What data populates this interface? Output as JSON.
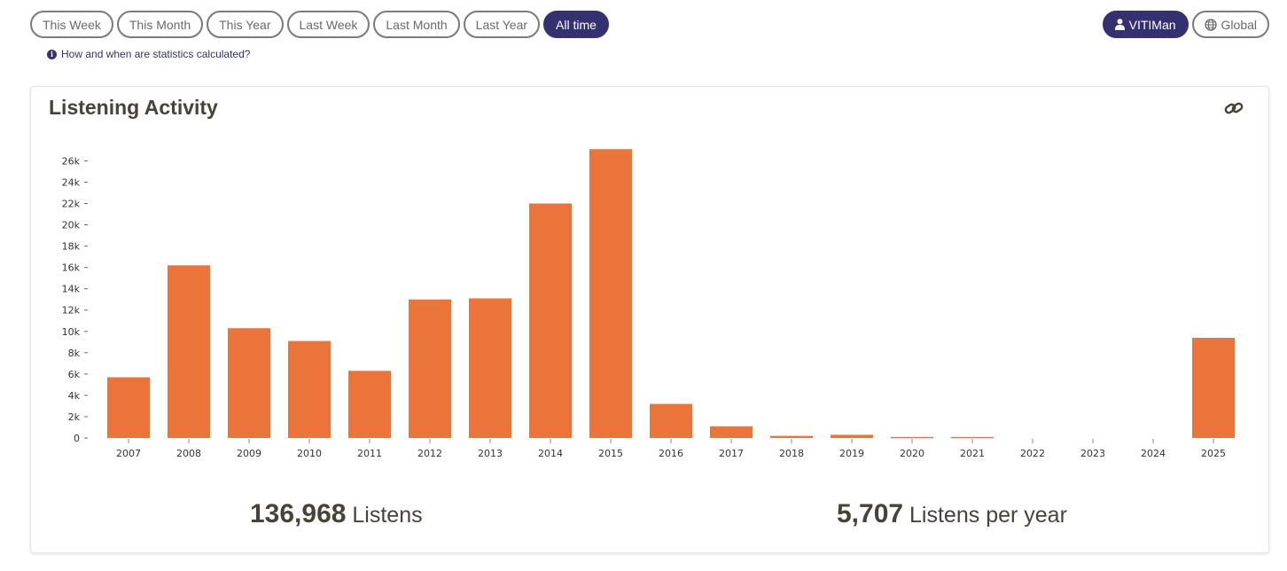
{
  "ranges": [
    {
      "label": "This Week",
      "active": false
    },
    {
      "label": "This Month",
      "active": false
    },
    {
      "label": "This Year",
      "active": false
    },
    {
      "label": "Last Week",
      "active": false
    },
    {
      "label": "Last Month",
      "active": false
    },
    {
      "label": "Last Year",
      "active": false
    },
    {
      "label": "All time",
      "active": true
    }
  ],
  "user_toggle": {
    "user_label": "VITIMan",
    "global_label": "Global"
  },
  "info_link": "How and when are statistics calculated?",
  "card": {
    "title": "Listening Activity"
  },
  "summary": {
    "total_value": "136,968",
    "total_label": "Listens",
    "avg_value": "5,707",
    "avg_label": "Listens per year"
  },
  "colors": {
    "bar": "#eb743b",
    "accent": "#353070",
    "text": "#46433a"
  },
  "chart_data": {
    "type": "bar",
    "categories": [
      "2007",
      "2008",
      "2009",
      "2010",
      "2011",
      "2012",
      "2013",
      "2014",
      "2015",
      "2016",
      "2017",
      "2018",
      "2019",
      "2020",
      "2021",
      "2022",
      "2023",
      "2024",
      "2025"
    ],
    "values": [
      5700,
      16200,
      10300,
      9100,
      6300,
      13000,
      13100,
      22000,
      27100,
      3200,
      1100,
      200,
      300,
      100,
      100,
      0,
      0,
      0,
      9400
    ],
    "yticks": [
      "0",
      "2k",
      "4k",
      "6k",
      "8k",
      "10k",
      "12k",
      "14k",
      "16k",
      "18k",
      "20k",
      "22k",
      "24k",
      "26k"
    ],
    "ylim": [
      0,
      27200
    ],
    "grid": false,
    "title": "",
    "xlabel": "",
    "ylabel": ""
  }
}
